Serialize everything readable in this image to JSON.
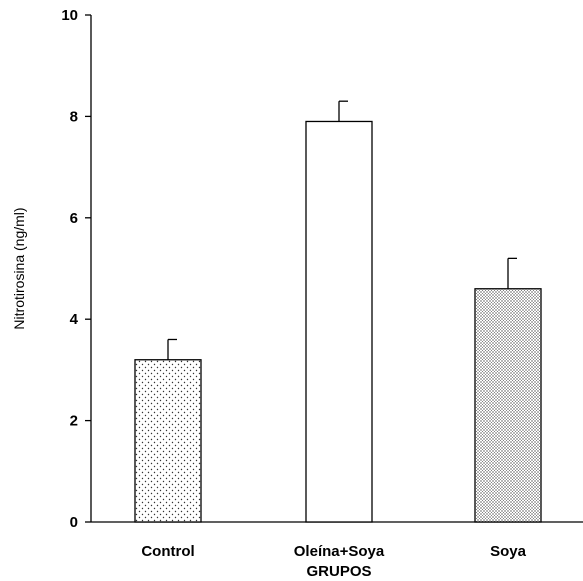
{
  "chart_data": {
    "type": "bar",
    "categories": [
      "Control",
      "Oleína+Soya",
      "Soya"
    ],
    "values": [
      3.2,
      7.9,
      4.6
    ],
    "errors": [
      0.4,
      0.4,
      0.6
    ],
    "patterns": [
      "sparse-dots",
      "none",
      "dense-dots"
    ],
    "xlabel": "GRUPOS",
    "ylabel": "Nitrotirosina (ng/ml)",
    "ylim": [
      0,
      10
    ],
    "yticks": [
      0,
      2,
      4,
      6,
      8,
      10
    ],
    "grid": false,
    "legend": "none",
    "bar_color": "#ffffff",
    "edge_color": "#000000"
  }
}
